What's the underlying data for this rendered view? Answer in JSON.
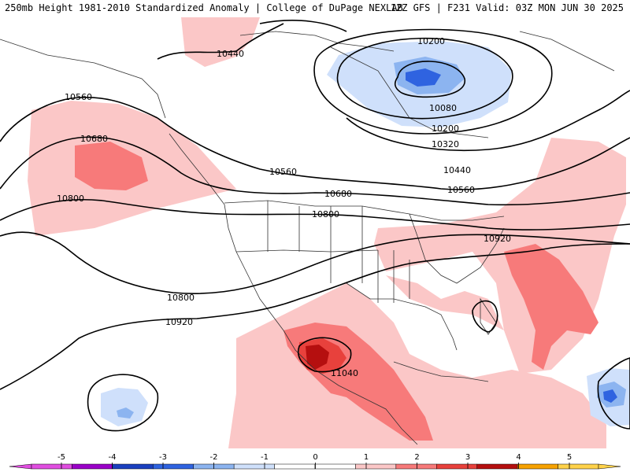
{
  "header": {
    "left_title": "250mb Height 1981-2010 Standardized Anomaly | College of DuPage NEXLAB",
    "right_title": "12Z GFS | F231 Valid: 03Z MON JUN 30 2025"
  },
  "contour_labels": [
    "10200",
    "10440",
    "10080",
    "10200",
    "10320",
    "10560",
    "10680",
    "10440",
    "10560",
    "10560",
    "10680",
    "10800",
    "10800",
    "10920",
    "10800",
    "10920",
    "11040"
  ],
  "colorbar": {
    "ticks": [
      "-5",
      "-4",
      "-3",
      "-2",
      "-1",
      "0",
      "1",
      "2",
      "3",
      "4",
      "5"
    ],
    "colors": [
      "#e04ee0",
      "#9a00c8",
      "#1a3fbf",
      "#2f63e0",
      "#8cb4f0",
      "#cfe0fb",
      "#ffffff",
      "#ffffff",
      "#fbc7c7",
      "#f77a7a",
      "#e8413c",
      "#b50f0f",
      "#f7a200",
      "#ffd24a"
    ]
  }
}
